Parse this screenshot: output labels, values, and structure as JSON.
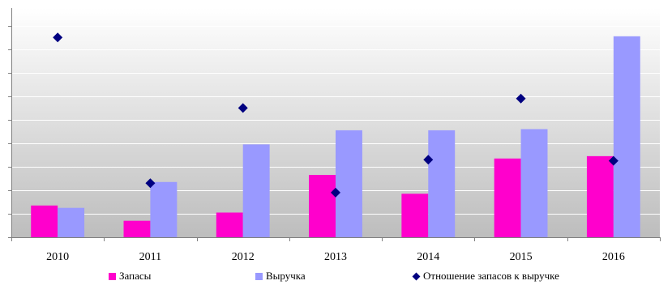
{
  "chart_data": {
    "type": "bar",
    "categories": [
      "2010",
      "2011",
      "2012",
      "2013",
      "2014",
      "2015",
      "2016"
    ],
    "series": [
      {
        "name": "Запасы",
        "type": "bar",
        "color": "#FF00CC",
        "values": [
          1.35,
          0.7,
          1.05,
          2.65,
          1.85,
          3.35,
          3.45
        ]
      },
      {
        "name": "Выручка",
        "type": "bar",
        "color": "#9999FF",
        "values": [
          1.25,
          2.35,
          3.95,
          4.55,
          4.55,
          4.6,
          8.55
        ]
      },
      {
        "name": "Отношение запасов к выручке",
        "type": "scatter",
        "marker": "diamond",
        "color": "#000080",
        "values": [
          8.5,
          2.3,
          5.5,
          1.9,
          3.3,
          5.9,
          3.25
        ]
      }
    ],
    "ylim": [
      0,
      9.75
    ],
    "y_ticks_major": [
      0,
      1,
      2,
      3,
      4,
      5,
      6,
      7,
      8,
      9
    ],
    "y_tick_labels_shown": false,
    "grid": "horizontal",
    "plot_background": "gradient-gray",
    "legend_position": "bottom",
    "title": "",
    "xlabel": "",
    "ylabel": ""
  }
}
